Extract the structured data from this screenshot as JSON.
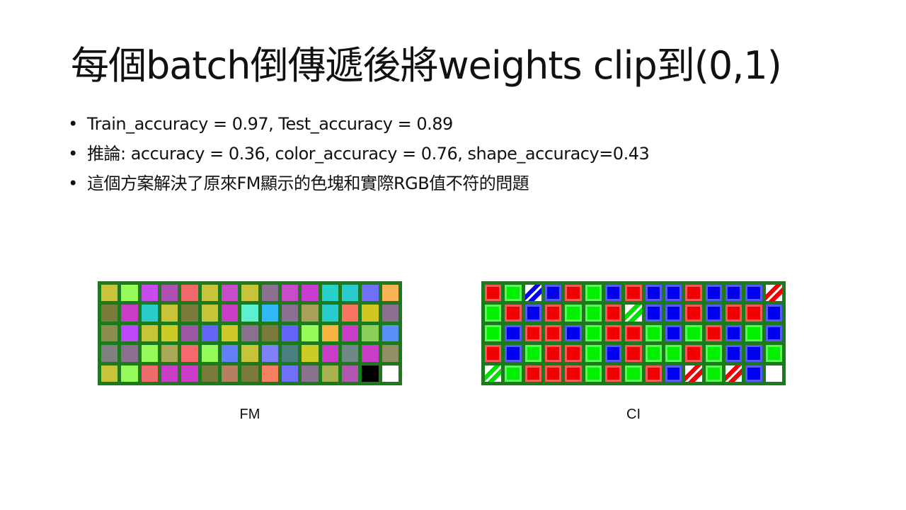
{
  "title": "每個batch倒傳遞後將weights clip到(0,1)",
  "bullets": [
    "Train_accuracy = 0.97, Test_accuracy = 0.89",
    "推論: accuracy = 0.36, color_accuracy = 0.76, shape_accuracy=0.43",
    "這個方案解決了原來FM顯示的色塊和實際RGB值不符的問題"
  ],
  "bullet_glyph": "•",
  "figures": {
    "fm": {
      "caption": "FM",
      "border_color": "#1c7a1c",
      "rows": [
        [
          "#c8c43a",
          "#96fa5a",
          "#c84bf0",
          "#b04fb4",
          "#f0686a",
          "#c8c43a",
          "#c84bc8",
          "#c8c43a",
          "#8c7090",
          "#c84bc8",
          "#c83cd0",
          "#28d0cc",
          "#28cccc",
          "#7070f8",
          "#f8b454"
        ],
        [
          "#7a7a3a",
          "#c83cc8",
          "#2ccccc",
          "#c8c43a",
          "#7a7a3a",
          "#c8c43a",
          "#c83cc8",
          "#5af0d0",
          "#30b8f8",
          "#8c7090",
          "#a8a058",
          "#28cccc",
          "#f87460",
          "#d0c820",
          "#8c7090"
        ],
        [
          "#8c8c50",
          "#c048f8",
          "#c8c43a",
          "#cccc28",
          "#9c58a4",
          "#6464f8",
          "#d0c828",
          "#8c7090",
          "#7a7a3a",
          "#6464f8",
          "#96fa5a",
          "#f8b440",
          "#c83cc8",
          "#8cd05a",
          "#5890f8"
        ],
        [
          "#808080",
          "#8c7090",
          "#96fa5a",
          "#a8a858",
          "#f8686c",
          "#96fa5a",
          "#6480f8",
          "#c8c43a",
          "#8080f8",
          "#4c8080",
          "#cccc28",
          "#c83cc8",
          "#708888",
          "#c83cc8",
          "#909064"
        ],
        [
          "#c8c43a",
          "#96fa5a",
          "#f06c6c",
          "#c83cc8",
          "#c83cc8",
          "#7a7a3a",
          "#b48060",
          "#7a7a3a",
          "#f88060",
          "#7070f8",
          "#8c7090",
          "#a8b050",
          "#b058b0",
          "#000000",
          "#ffffff"
        ]
      ]
    },
    "ci": {
      "caption": "CI",
      "border_color": "#1c7a1c",
      "rows": [
        [
          "#f00000",
          "#00f000",
          "mixed-blue",
          "#0000f0",
          "#f00000",
          "#00f000",
          "#0000f0",
          "#f00000",
          "#0000f0",
          "#0000f0",
          "#f00000",
          "#0000f0",
          "#0000f0",
          "#0000f0",
          "mixed-red"
        ],
        [
          "#00f000",
          "#f00000",
          "#0000f0",
          "#f00000",
          "#00f000",
          "#00f000",
          "#f00000",
          "mixed-green",
          "#0000f0",
          "#0000f0",
          "#f00000",
          "#0000f0",
          "#f00000",
          "#f00000",
          "#0000f0"
        ],
        [
          "#00f000",
          "#0000f0",
          "#f00000",
          "#f00000",
          "#0000f0",
          "#00f000",
          "#f00000",
          "#f00000",
          "#00f000",
          "#0000f0",
          "#00f000",
          "#f00000",
          "#0000f0",
          "#00f000",
          "#0000f0"
        ],
        [
          "#f00000",
          "#0000f0",
          "#00f000",
          "#f00000",
          "#f00000",
          "#00f000",
          "#0000f0",
          "#f00000",
          "#00f000",
          "#00f000",
          "#f00000",
          "#00f000",
          "#0000f0",
          "#0000f0",
          "#00f000"
        ],
        [
          "mixed-green",
          "#00f000",
          "#f00000",
          "#f00000",
          "#f00000",
          "#00f000",
          "#f00000",
          "#00f000",
          "#f00000",
          "#0000f0",
          "mixed-red",
          "#00f000",
          "mixed-red",
          "#0000f0",
          "#ffffff"
        ]
      ]
    }
  }
}
